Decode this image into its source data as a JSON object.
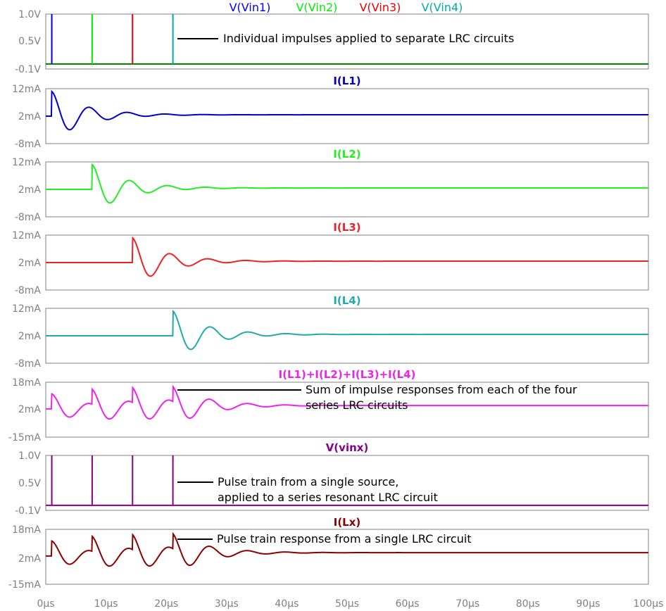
{
  "chart_data": {
    "type": "line",
    "x_axis": {
      "min": 0,
      "max": 100,
      "tick_labels": [
        "0µs",
        "10µs",
        "20µs",
        "30µs",
        "40µs",
        "50µs",
        "60µs",
        "70µs",
        "80µs",
        "90µs",
        "100µs"
      ]
    },
    "panels": [
      {
        "id": "vin",
        "kind": "pulse",
        "legend": [
          {
            "name": "V(Vin1)",
            "color": "#0000ff"
          },
          {
            "name": "V(Vin2)",
            "color": "#00ee00"
          },
          {
            "name": "V(Vin3)",
            "color": "#ee0000"
          },
          {
            "name": "V(Vin4)",
            "color": "#00aaaa"
          }
        ],
        "ylim": [
          -0.1,
          1.0
        ],
        "y_ticks": [
          "1.0V",
          "0.5V",
          "-0.1V"
        ],
        "pulses": [
          {
            "t": 1.0,
            "color": "#0000ff"
          },
          {
            "t": 7.7,
            "color": "#00ee00"
          },
          {
            "t": 14.4,
            "color": "#ee0000"
          },
          {
            "t": 21.1,
            "color": "#00aaaa"
          }
        ],
        "baseline": 0.0,
        "baseline_color": "#007700",
        "annotation": [
          "Individual impulses applied to separate LRC circuits"
        ]
      },
      {
        "id": "il1",
        "kind": "ringdown",
        "title": "I(L1)",
        "color": "#0000cc",
        "ylim": [
          -8,
          12
        ],
        "y_ticks": [
          "12mA",
          "2mA",
          "-8mA"
        ],
        "baseline": 2,
        "onsets": [
          1.0
        ],
        "peak": 11.5,
        "trough": -6.5,
        "period": 6.3,
        "decay": 5.5
      },
      {
        "id": "il2",
        "kind": "ringdown",
        "title": "I(L2)",
        "color": "#22ee22",
        "ylim": [
          -8,
          12
        ],
        "y_ticks": [
          "12mA",
          "2mA",
          "-8mA"
        ],
        "baseline": 2,
        "onsets": [
          7.7
        ],
        "peak": 11.5,
        "trough": -6.5,
        "period": 6.3,
        "decay": 5.5
      },
      {
        "id": "il3",
        "kind": "ringdown",
        "title": "I(L3)",
        "color": "#ee2222",
        "ylim": [
          -8,
          12
        ],
        "y_ticks": [
          "12mA",
          "2mA",
          "-8mA"
        ],
        "baseline": 2,
        "onsets": [
          14.4
        ],
        "peak": 11.5,
        "trough": -6.5,
        "period": 6.3,
        "decay": 5.5
      },
      {
        "id": "il4",
        "kind": "ringdown",
        "title": "I(L4)",
        "color": "#22aaaa",
        "ylim": [
          -8,
          12
        ],
        "y_ticks": [
          "12mA",
          "2mA",
          "-8mA"
        ],
        "baseline": 2,
        "onsets": [
          21.1
        ],
        "peak": 11.5,
        "trough": -6.5,
        "period": 6.3,
        "decay": 5.5
      },
      {
        "id": "isum",
        "kind": "ringdown",
        "title": "I(L1)+I(L2)+I(L3)+I(L4)",
        "color": "#ee22ee",
        "ylim": [
          -15,
          18
        ],
        "y_ticks": [
          "18mA",
          "2mA",
          "-15mA"
        ],
        "baseline": 2,
        "onsets": [
          1.0,
          7.7,
          14.4,
          21.1
        ],
        "peak": 11.5,
        "trough": -6.5,
        "period": 6.3,
        "decay": 5.5,
        "annotation": [
          "Sum of impulse responses  from each of the four",
          "series LRC circuits"
        ]
      },
      {
        "id": "vinx",
        "kind": "pulse",
        "title": "V(vinx)",
        "title_color": "#880088",
        "ylim": [
          -0.1,
          1.0
        ],
        "y_ticks": [
          "1.0V",
          "0.5V",
          "-0.1V"
        ],
        "pulses": [
          {
            "t": 1.0,
            "color": "#880088"
          },
          {
            "t": 7.7,
            "color": "#880088"
          },
          {
            "t": 14.4,
            "color": "#880088"
          },
          {
            "t": 21.1,
            "color": "#880088"
          }
        ],
        "baseline": 0.0,
        "baseline_color": "#880088",
        "annotation": [
          "Pulse train from a single source,",
          "applied to a series resonant LRC circuit"
        ]
      },
      {
        "id": "ilx",
        "kind": "ringdown",
        "title": "I(Lx)",
        "color": "#880000",
        "ylim": [
          -15,
          18
        ],
        "y_ticks": [
          "18mA",
          "2mA",
          "-15mA"
        ],
        "baseline": 2,
        "onsets": [
          1.0,
          7.7,
          14.4,
          21.1
        ],
        "peak": 11.5,
        "trough": -6.5,
        "period": 6.3,
        "decay": 5.5,
        "annotation": [
          "Pulse train response from a single LRC circuit"
        ]
      }
    ]
  }
}
